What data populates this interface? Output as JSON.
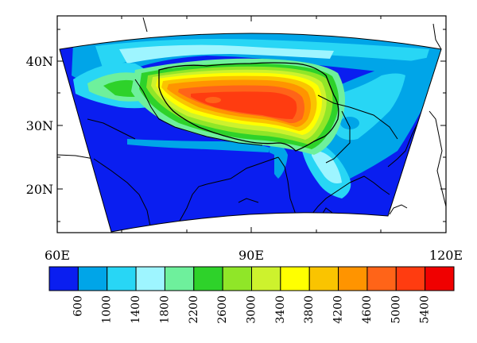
{
  "map": {
    "longitude_ticks": [
      {
        "value": 60,
        "label": "60E"
      },
      {
        "value": 90,
        "label": "90E"
      },
      {
        "value": 120,
        "label": "120E"
      }
    ],
    "latitude_ticks": [
      {
        "value": 40,
        "label": "40N"
      },
      {
        "value": 30,
        "label": "30N"
      },
      {
        "value": 20,
        "label": "20N"
      }
    ],
    "lon_range": [
      60,
      120
    ],
    "lat_range": [
      13,
      46
    ]
  },
  "colorbar": {
    "labels": [
      "600",
      "1000",
      "1400",
      "1800",
      "2200",
      "2600",
      "3000",
      "3400",
      "3800",
      "4200",
      "4600",
      "5000",
      "5400"
    ],
    "colors": [
      "#0a1ef0",
      "#00a5e8",
      "#28d6f5",
      "#9ef5ff",
      "#6ef09c",
      "#2ed22a",
      "#90e628",
      "#cdf22d",
      "#ffff00",
      "#fac400",
      "#ff9400",
      "#ff6418",
      "#ff3c10",
      "#f00000"
    ]
  }
}
